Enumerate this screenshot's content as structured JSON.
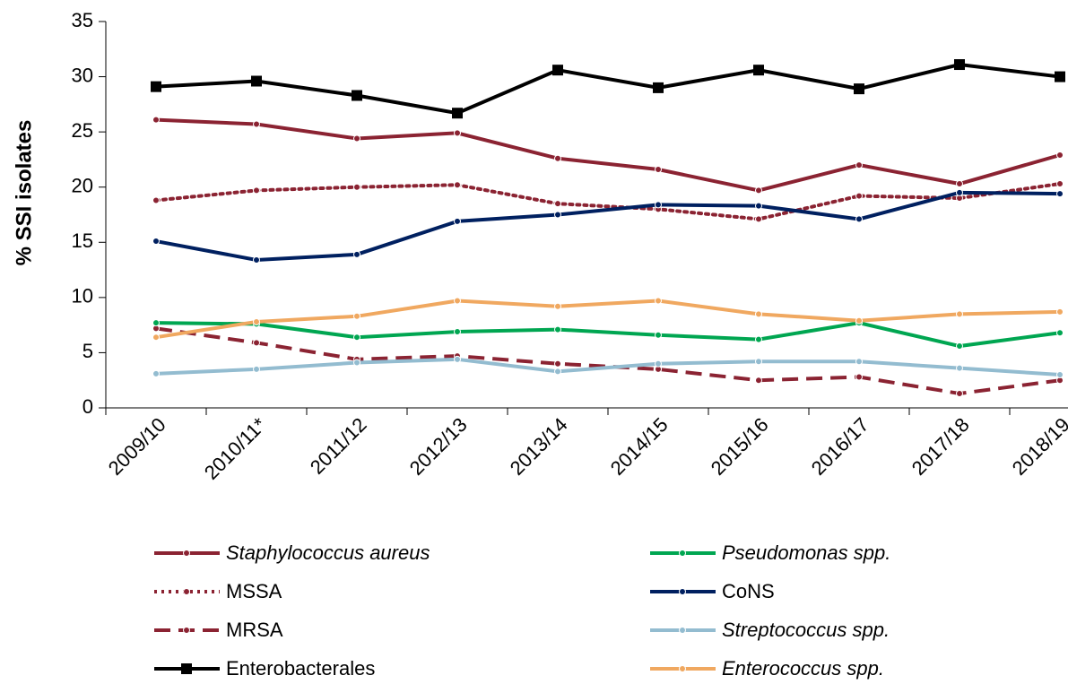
{
  "chart_data": {
    "type": "line",
    "y_label": "% SSI isolates",
    "categories": [
      "2009/10",
      "2010/11*",
      "2011/12",
      "2012/13",
      "2013/14",
      "2014/15",
      "2015/16",
      "2016/17",
      "2017/18",
      "2018/19"
    ],
    "ylim": [
      0,
      35
    ],
    "yticks": [
      0,
      5,
      10,
      15,
      20,
      25,
      30,
      35
    ],
    "series": [
      {
        "name": "Staphylococcus aureus",
        "color": "#8b2332",
        "line_style": "solid",
        "marker": "circle",
        "italic": true,
        "values": [
          26.1,
          25.7,
          24.4,
          24.9,
          22.6,
          21.6,
          19.7,
          22.0,
          20.3,
          22.9
        ]
      },
      {
        "name": "MSSA",
        "color": "#8b2332",
        "line_style": "dotted",
        "marker": "circle",
        "italic": false,
        "values": [
          18.8,
          19.7,
          20.0,
          20.2,
          18.5,
          18.0,
          17.1,
          19.2,
          19.0,
          20.3
        ]
      },
      {
        "name": "MRSA",
        "color": "#8b2332",
        "line_style": "dashed",
        "marker": "circle",
        "italic": false,
        "values": [
          7.2,
          5.9,
          4.4,
          4.7,
          4.0,
          3.5,
          2.5,
          2.8,
          1.3,
          2.5
        ]
      },
      {
        "name": "Enterobacterales",
        "color": "#000000",
        "line_style": "solid",
        "marker": "square",
        "italic": false,
        "values": [
          29.1,
          29.6,
          28.3,
          26.7,
          30.6,
          29.0,
          30.6,
          28.9,
          31.1,
          30.0
        ]
      },
      {
        "name": "Pseudomonas spp.",
        "color": "#00a651",
        "line_style": "solid",
        "marker": "circle",
        "italic": true,
        "values": [
          7.7,
          7.6,
          6.4,
          6.9,
          7.1,
          6.6,
          6.2,
          7.7,
          5.6,
          6.8
        ]
      },
      {
        "name": "CoNS",
        "color": "#002060",
        "line_style": "solid",
        "marker": "circle",
        "italic": false,
        "values": [
          15.1,
          13.4,
          13.9,
          16.9,
          17.5,
          18.4,
          18.3,
          17.1,
          19.5,
          19.4
        ]
      },
      {
        "name": "Streptococcus spp.",
        "color": "#93bcd0",
        "line_style": "solid",
        "marker": "circle",
        "italic": true,
        "values": [
          3.1,
          3.5,
          4.1,
          4.4,
          3.3,
          4.0,
          4.2,
          4.2,
          3.6,
          3.0
        ]
      },
      {
        "name": "Enterococcus spp.",
        "color": "#f0a860",
        "line_style": "solid",
        "marker": "circle",
        "italic": true,
        "values": [
          6.4,
          7.8,
          8.3,
          9.7,
          9.2,
          9.7,
          8.5,
          7.9,
          8.5,
          8.7
        ]
      }
    ]
  }
}
